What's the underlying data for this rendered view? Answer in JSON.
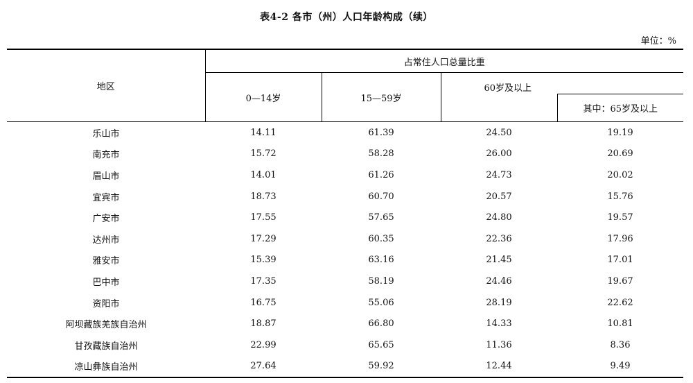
{
  "title": "表4-2  各市（州）人口年龄构成（续）",
  "unit": "单位：%",
  "headers": {
    "region": "地区",
    "group": "占常住人口总量比重",
    "col_0_14": "0—14岁",
    "col_15_59": "15—59岁",
    "col_60_plus": "60岁及以上",
    "col_65_plus": "其中：65岁及以上"
  },
  "rows": [
    {
      "region": "乐山市",
      "v0_14": "14.11",
      "v15_59": "61.39",
      "v60": "24.50",
      "v65": "19.19"
    },
    {
      "region": "南充市",
      "v0_14": "15.72",
      "v15_59": "58.28",
      "v60": "26.00",
      "v65": "20.69"
    },
    {
      "region": "眉山市",
      "v0_14": "14.01",
      "v15_59": "61.26",
      "v60": "24.73",
      "v65": "20.02"
    },
    {
      "region": "宜宾市",
      "v0_14": "18.73",
      "v15_59": "60.70",
      "v60": "20.57",
      "v65": "15.76"
    },
    {
      "region": "广安市",
      "v0_14": "17.55",
      "v15_59": "57.65",
      "v60": "24.80",
      "v65": "19.57"
    },
    {
      "region": "达州市",
      "v0_14": "17.29",
      "v15_59": "60.35",
      "v60": "22.36",
      "v65": "17.96"
    },
    {
      "region": "雅安市",
      "v0_14": "15.39",
      "v15_59": "63.16",
      "v60": "21.45",
      "v65": "17.01"
    },
    {
      "region": "巴中市",
      "v0_14": "17.35",
      "v15_59": "58.19",
      "v60": "24.46",
      "v65": "19.67"
    },
    {
      "region": "资阳市",
      "v0_14": "16.75",
      "v15_59": "55.06",
      "v60": "28.19",
      "v65": "22.62"
    },
    {
      "region": "阿坝藏族羌族自治州",
      "v0_14": "18.87",
      "v15_59": "66.80",
      "v60": "14.33",
      "v65": "10.81"
    },
    {
      "region": "甘孜藏族自治州",
      "v0_14": "22.99",
      "v15_59": "65.65",
      "v60": "11.36",
      "v65": "8.36"
    },
    {
      "region": "凉山彝族自治州",
      "v0_14": "27.64",
      "v15_59": "59.92",
      "v60": "12.44",
      "v65": "9.49"
    }
  ]
}
